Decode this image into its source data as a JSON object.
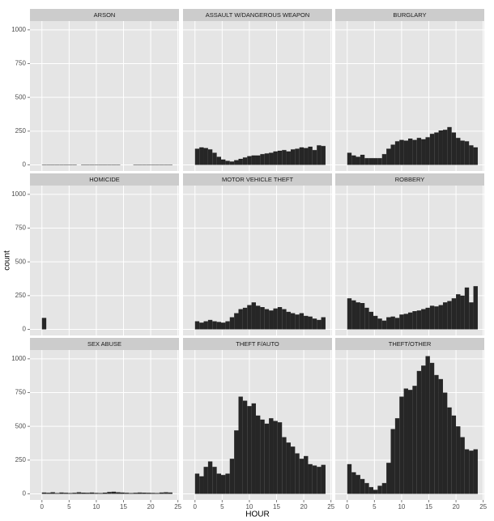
{
  "chart_data": [
    {
      "type": "histogram",
      "title": "ARSON",
      "bins": [
        0,
        0.8,
        1.6,
        2.4,
        3.2,
        4,
        4.8,
        5.6,
        6.4,
        7.2,
        8,
        8.8,
        9.6,
        10.4,
        11.2,
        12,
        12.8,
        13.6,
        14.4,
        15.2,
        16,
        16.8,
        17.6,
        18.4,
        19.2,
        20,
        20.8,
        21.6,
        22.4,
        23.2,
        24
      ],
      "values": [
        3,
        3,
        3,
        3,
        3,
        3,
        3,
        3,
        0,
        3,
        3,
        3,
        3,
        3,
        3,
        3,
        3,
        3,
        0,
        0,
        0,
        3,
        3,
        3,
        3,
        3,
        3,
        3,
        3,
        3
      ],
      "color": "#262626",
      "xlim": [
        -2.2,
        25.2
      ],
      "ylim": [
        -45,
        1065
      ],
      "xticks": [
        0,
        5,
        10,
        15,
        20,
        25
      ],
      "yticks": [
        0,
        250,
        500,
        750,
        1000
      ]
    },
    {
      "type": "histogram",
      "title": "ASSAULT W/DANGEROUS WEAPON",
      "bins": [
        0,
        0.8,
        1.6,
        2.4,
        3.2,
        4,
        4.8,
        5.6,
        6.4,
        7.2,
        8,
        8.8,
        9.6,
        10.4,
        11.2,
        12,
        12.8,
        13.6,
        14.4,
        15.2,
        16,
        16.8,
        17.6,
        18.4,
        19.2,
        20,
        20.8,
        21.6,
        22.4,
        23.2,
        24
      ],
      "values": [
        120,
        130,
        125,
        115,
        90,
        60,
        40,
        30,
        25,
        35,
        45,
        55,
        65,
        70,
        70,
        80,
        85,
        90,
        100,
        105,
        110,
        100,
        115,
        120,
        130,
        125,
        135,
        110,
        145,
        140
      ],
      "color": "#262626",
      "xlim": [
        -2.2,
        25.2
      ],
      "ylim": [
        -45,
        1065
      ],
      "xticks": [
        0,
        5,
        10,
        15,
        20,
        25
      ],
      "yticks": [
        0,
        250,
        500,
        750,
        1000
      ]
    },
    {
      "type": "histogram",
      "title": "BURGLARY",
      "bins": [
        0,
        0.8,
        1.6,
        2.4,
        3.2,
        4,
        4.8,
        5.6,
        6.4,
        7.2,
        8,
        8.8,
        9.6,
        10.4,
        11.2,
        12,
        12.8,
        13.6,
        14.4,
        15.2,
        16,
        16.8,
        17.6,
        18.4,
        19.2,
        20,
        20.8,
        21.6,
        22.4,
        23.2,
        24
      ],
      "values": [
        90,
        70,
        60,
        75,
        50,
        50,
        50,
        50,
        80,
        120,
        150,
        175,
        185,
        180,
        195,
        185,
        200,
        190,
        205,
        230,
        240,
        255,
        260,
        280,
        240,
        200,
        180,
        175,
        145,
        130
      ],
      "color": "#262626",
      "xlim": [
        -2.2,
        25.2
      ],
      "ylim": [
        -45,
        1065
      ],
      "xticks": [
        0,
        5,
        10,
        15,
        20,
        25
      ],
      "yticks": [
        0,
        250,
        500,
        750,
        1000
      ]
    },
    {
      "type": "histogram",
      "title": "HOMICIDE",
      "y_label": "count",
      "bins": [
        0,
        0.8,
        1.6,
        2.4,
        3.2,
        4,
        4.8,
        5.6,
        6.4,
        7.2,
        8,
        8.8,
        9.6,
        10.4,
        11.2,
        12,
        12.8,
        13.6,
        14.4,
        15.2,
        16,
        16.8,
        17.6,
        18.4,
        19.2,
        20,
        20.8,
        21.6,
        22.4,
        23.2,
        24
      ],
      "values": [
        85,
        0,
        0,
        0,
        0,
        0,
        0,
        0,
        0,
        0,
        0,
        0,
        0,
        0,
        0,
        0,
        0,
        0,
        0,
        0,
        0,
        0,
        0,
        0,
        0,
        0,
        0,
        0,
        0,
        0
      ],
      "color": "#262626",
      "xlim": [
        -2.2,
        25.2
      ],
      "ylim": [
        -45,
        1065
      ],
      "xticks": [
        0,
        5,
        10,
        15,
        20,
        25
      ],
      "yticks": [
        0,
        250,
        500,
        750,
        1000
      ]
    },
    {
      "type": "histogram",
      "title": "MOTOR VEHICLE THEFT",
      "bins": [
        0,
        0.8,
        1.6,
        2.4,
        3.2,
        4,
        4.8,
        5.6,
        6.4,
        7.2,
        8,
        8.8,
        9.6,
        10.4,
        11.2,
        12,
        12.8,
        13.6,
        14.4,
        15.2,
        16,
        16.8,
        17.6,
        18.4,
        19.2,
        20,
        20.8,
        21.6,
        22.4,
        23.2,
        24
      ],
      "values": [
        60,
        50,
        60,
        70,
        60,
        55,
        50,
        60,
        90,
        120,
        150,
        160,
        180,
        200,
        175,
        165,
        150,
        140,
        155,
        165,
        150,
        130,
        120,
        110,
        120,
        100,
        95,
        80,
        70,
        90
      ],
      "color": "#262626",
      "xlim": [
        -2.2,
        25.2
      ],
      "ylim": [
        -45,
        1065
      ],
      "xticks": [
        0,
        5,
        10,
        15,
        20,
        25
      ],
      "yticks": [
        0,
        250,
        500,
        750,
        1000
      ]
    },
    {
      "type": "histogram",
      "title": "ROBBERY",
      "bins": [
        0,
        0.8,
        1.6,
        2.4,
        3.2,
        4,
        4.8,
        5.6,
        6.4,
        7.2,
        8,
        8.8,
        9.6,
        10.4,
        11.2,
        12,
        12.8,
        13.6,
        14.4,
        15.2,
        16,
        16.8,
        17.6,
        18.4,
        19.2,
        20,
        20.8,
        21.6,
        22.4,
        23.2,
        24
      ],
      "values": [
        230,
        215,
        200,
        195,
        160,
        130,
        100,
        80,
        65,
        90,
        95,
        85,
        110,
        115,
        125,
        135,
        140,
        150,
        160,
        175,
        170,
        180,
        200,
        210,
        230,
        260,
        250,
        310,
        200,
        320
      ],
      "color": "#262626",
      "xlim": [
        -2.2,
        25.2
      ],
      "ylim": [
        -45,
        1065
      ],
      "xticks": [
        0,
        5,
        10,
        15,
        20,
        25
      ],
      "yticks": [
        0,
        250,
        500,
        750,
        1000
      ]
    },
    {
      "type": "histogram",
      "title": "SEX ABUSE",
      "bins": [
        0,
        0.8,
        1.6,
        2.4,
        3.2,
        4,
        4.8,
        5.6,
        6.4,
        7.2,
        8,
        8.8,
        9.6,
        10.4,
        11.2,
        12,
        12.8,
        13.6,
        14.4,
        15.2,
        16,
        16.8,
        17.6,
        18.4,
        19.2,
        20,
        20.8,
        21.6,
        22.4,
        23.2,
        24
      ],
      "values": [
        10,
        8,
        12,
        6,
        10,
        8,
        6,
        8,
        12,
        9,
        8,
        10,
        7,
        6,
        9,
        14,
        16,
        12,
        10,
        8,
        6,
        8,
        10,
        9,
        8,
        7,
        6,
        10,
        12,
        10
      ],
      "color": "#262626",
      "xlim": [
        -2.2,
        25.2
      ],
      "ylim": [
        -45,
        1065
      ],
      "xticks": [
        0,
        5,
        10,
        15,
        20,
        25
      ],
      "yticks": [
        0,
        250,
        500,
        750,
        1000
      ]
    },
    {
      "type": "histogram",
      "title": "THEFT F/AUTO",
      "x_label": "HOUR",
      "bins": [
        0,
        0.8,
        1.6,
        2.4,
        3.2,
        4,
        4.8,
        5.6,
        6.4,
        7.2,
        8,
        8.8,
        9.6,
        10.4,
        11.2,
        12,
        12.8,
        13.6,
        14.4,
        15.2,
        16,
        16.8,
        17.6,
        18.4,
        19.2,
        20,
        20.8,
        21.6,
        22.4,
        23.2,
        24
      ],
      "values": [
        150,
        130,
        200,
        240,
        200,
        150,
        140,
        150,
        260,
        470,
        720,
        690,
        650,
        670,
        580,
        550,
        520,
        560,
        540,
        530,
        420,
        380,
        350,
        300,
        260,
        280,
        220,
        210,
        200,
        215
      ],
      "color": "#262626",
      "xlim": [
        -2.2,
        25.2
      ],
      "ylim": [
        -45,
        1065
      ],
      "xticks": [
        0,
        5,
        10,
        15,
        20,
        25
      ],
      "yticks": [
        0,
        250,
        500,
        750,
        1000
      ]
    },
    {
      "type": "histogram",
      "title": "THEFT/OTHER",
      "bins": [
        0,
        0.8,
        1.6,
        2.4,
        3.2,
        4,
        4.8,
        5.6,
        6.4,
        7.2,
        8,
        8.8,
        9.6,
        10.4,
        11.2,
        12,
        12.8,
        13.6,
        14.4,
        15.2,
        16,
        16.8,
        17.6,
        18.4,
        19.2,
        20,
        20.8,
        21.6,
        22.4,
        23.2,
        24
      ],
      "values": [
        220,
        160,
        140,
        110,
        80,
        50,
        30,
        60,
        80,
        230,
        480,
        560,
        720,
        780,
        770,
        800,
        910,
        950,
        1020,
        970,
        880,
        850,
        750,
        640,
        580,
        500,
        420,
        330,
        320,
        330
      ],
      "color": "#262626",
      "xlim": [
        -2.2,
        25.2
      ],
      "ylim": [
        -45,
        1065
      ],
      "xticks": [
        0,
        5,
        10,
        15,
        20,
        25
      ],
      "yticks": [
        0,
        250,
        500,
        750,
        1000
      ]
    }
  ]
}
